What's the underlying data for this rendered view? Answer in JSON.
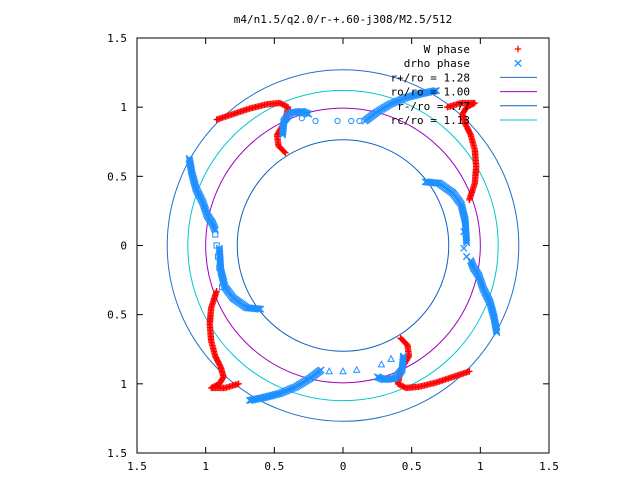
{
  "chart_data": {
    "type": "scatter",
    "title": "m4/n1.5/q2.0/r-+.60-j308/M2.5/512",
    "xlabel": "",
    "ylabel": "",
    "xlim": [
      -1.5,
      1.5
    ],
    "ylim": [
      -1.5,
      1.5
    ],
    "grid": false,
    "legend_position": "top-right",
    "x_ticks": [
      -1.5,
      -1,
      -0.5,
      0,
      0.5,
      1,
      1.5
    ],
    "x_tick_labels": [
      "1.5",
      "1",
      "0.5",
      "0",
      "0.5",
      "1",
      "1.5"
    ],
    "y_ticks": [
      1.5,
      1,
      0.5,
      0,
      -0.5,
      -1,
      -1.5
    ],
    "y_tick_labels": [
      "1.5",
      "1",
      "0.5",
      "0",
      "0.5",
      "1",
      "1.5"
    ],
    "legend": [
      {
        "label": "W phase",
        "color": "#ff0000",
        "marker": "plus"
      },
      {
        "label": "drho phase",
        "color": "#1e90ff",
        "marker": "cross"
      },
      {
        "label": "r+/ro = 1.28",
        "color": "#2070c8",
        "marker": "line"
      },
      {
        "label": "ro/ro = 1.00",
        "color": "#a000c0",
        "marker": "line"
      },
      {
        "label": "r-/ro = .77",
        "color": "#1060c0",
        "marker": "line"
      },
      {
        "label": "rc/ro = 1.13",
        "color": "#00c8d0",
        "marker": "line"
      }
    ],
    "circles": [
      {
        "name": "r+/ro",
        "radius": 1.28,
        "color": "#2070c8"
      },
      {
        "name": "ro/ro",
        "radius": 1.0,
        "color": "#a000c0"
      },
      {
        "name": "r-/ro",
        "radius": 0.77,
        "color": "#1060c0"
      },
      {
        "name": "rc/ro",
        "radius": 1.13,
        "color": "#00c8d0"
      }
    ],
    "series": [
      {
        "name": "W phase",
        "color": "#ff0000",
        "marker": "plus",
        "arms": [
          [
            [
              -0.92,
              0.91
            ],
            [
              -0.8,
              0.95
            ],
            [
              -0.68,
              0.99
            ],
            [
              -0.56,
              1.02
            ],
            [
              -0.46,
              1.03
            ],
            [
              -0.4,
              1.0
            ],
            [
              -0.42,
              0.9
            ],
            [
              -0.48,
              0.8
            ],
            [
              -0.47,
              0.72
            ],
            [
              -0.42,
              0.67
            ]
          ],
          [
            [
              0.92,
              0.33
            ],
            [
              0.96,
              0.45
            ],
            [
              0.97,
              0.57
            ],
            [
              0.96,
              0.69
            ],
            [
              0.93,
              0.8
            ],
            [
              0.89,
              0.88
            ],
            [
              0.87,
              0.95
            ],
            [
              0.9,
              1.0
            ],
            [
              0.96,
              1.03
            ],
            [
              0.86,
              1.03
            ],
            [
              0.76,
              1.0
            ]
          ],
          [
            [
              0.92,
              -0.91
            ],
            [
              0.8,
              -0.95
            ],
            [
              0.68,
              -0.99
            ],
            [
              0.56,
              -1.02
            ],
            [
              0.46,
              -1.03
            ],
            [
              0.4,
              -1.0
            ],
            [
              0.42,
              -0.9
            ],
            [
              0.48,
              -0.8
            ],
            [
              0.47,
              -0.72
            ],
            [
              0.42,
              -0.67
            ]
          ],
          [
            [
              -0.92,
              -0.33
            ],
            [
              -0.96,
              -0.45
            ],
            [
              -0.97,
              -0.57
            ],
            [
              -0.96,
              -0.69
            ],
            [
              -0.93,
              -0.8
            ],
            [
              -0.89,
              -0.88
            ],
            [
              -0.87,
              -0.95
            ],
            [
              -0.9,
              -1.0
            ],
            [
              -0.96,
              -1.03
            ],
            [
              -0.86,
              -1.03
            ],
            [
              -0.76,
              -1.0
            ]
          ]
        ]
      },
      {
        "name": "drho phase",
        "color": "#1e90ff",
        "marker": "cross",
        "arms": [
          [
            [
              -1.12,
              0.63
            ],
            [
              -1.1,
              0.52
            ],
            [
              -1.07,
              0.41
            ],
            [
              -1.02,
              0.31
            ],
            [
              -0.99,
              0.22
            ],
            [
              -0.95,
              0.16
            ],
            [
              -0.93,
              0.11
            ]
          ],
          [
            [
              0.6,
              0.46
            ],
            [
              0.7,
              0.45
            ],
            [
              0.8,
              0.38
            ],
            [
              0.86,
              0.3
            ],
            [
              0.89,
              0.18
            ],
            [
              0.9,
              0.02
            ]
          ],
          [
            [
              1.12,
              -0.63
            ],
            [
              1.1,
              -0.52
            ],
            [
              1.07,
              -0.41
            ],
            [
              1.02,
              -0.31
            ],
            [
              0.99,
              -0.22
            ],
            [
              0.95,
              -0.16
            ],
            [
              0.93,
              -0.11
            ]
          ],
          [
            [
              -0.6,
              -0.46
            ],
            [
              -0.7,
              -0.45
            ],
            [
              -0.8,
              -0.38
            ],
            [
              -0.86,
              -0.3
            ],
            [
              -0.89,
              -0.18
            ],
            [
              -0.9,
              -0.02
            ]
          ],
          [
            [
              -0.44,
              0.8
            ],
            [
              -0.43,
              0.9
            ],
            [
              -0.38,
              0.96
            ],
            [
              -0.3,
              0.97
            ],
            [
              -0.25,
              0.95
            ]
          ],
          [
            [
              0.16,
              0.9
            ],
            [
              0.24,
              0.96
            ],
            [
              0.34,
              1.02
            ],
            [
              0.46,
              1.07
            ],
            [
              0.58,
              1.1
            ],
            [
              0.68,
              1.12
            ]
          ],
          [
            [
              0.44,
              -0.8
            ],
            [
              0.43,
              -0.9
            ],
            [
              0.38,
              -0.96
            ],
            [
              0.3,
              -0.97
            ],
            [
              0.25,
              -0.95
            ]
          ],
          [
            [
              -0.16,
              -0.9
            ],
            [
              -0.24,
              -0.96
            ],
            [
              -0.34,
              -1.02
            ],
            [
              -0.46,
              -1.07
            ],
            [
              -0.58,
              -1.1
            ],
            [
              -0.68,
              -1.12
            ]
          ]
        ]
      }
    ],
    "sparse_markers": [
      {
        "shape": "circle",
        "color": "#1e90ff",
        "points": [
          [
            -0.2,
            0.9
          ],
          [
            -0.04,
            0.9
          ],
          [
            0.06,
            0.9
          ],
          [
            0.12,
            0.9
          ],
          [
            -0.3,
            0.92
          ]
        ]
      },
      {
        "shape": "square",
        "color": "#1e90ff",
        "points": [
          [
            -0.93,
            0.08
          ],
          [
            -0.92,
            0.0
          ],
          [
            -0.91,
            -0.08
          ],
          [
            -0.9,
            -0.16
          ],
          [
            -0.88,
            -0.3
          ]
        ]
      },
      {
        "shape": "triangle",
        "color": "#1e90ff",
        "points": [
          [
            -0.1,
            -0.91
          ],
          [
            0.0,
            -0.91
          ],
          [
            0.1,
            -0.9
          ],
          [
            0.28,
            -0.86
          ],
          [
            0.35,
            -0.82
          ]
        ]
      },
      {
        "shape": "cross",
        "color": "#1e90ff",
        "points": [
          [
            0.9,
            -0.08
          ],
          [
            0.88,
            -0.02
          ],
          [
            0.88,
            0.1
          ]
        ]
      }
    ]
  }
}
